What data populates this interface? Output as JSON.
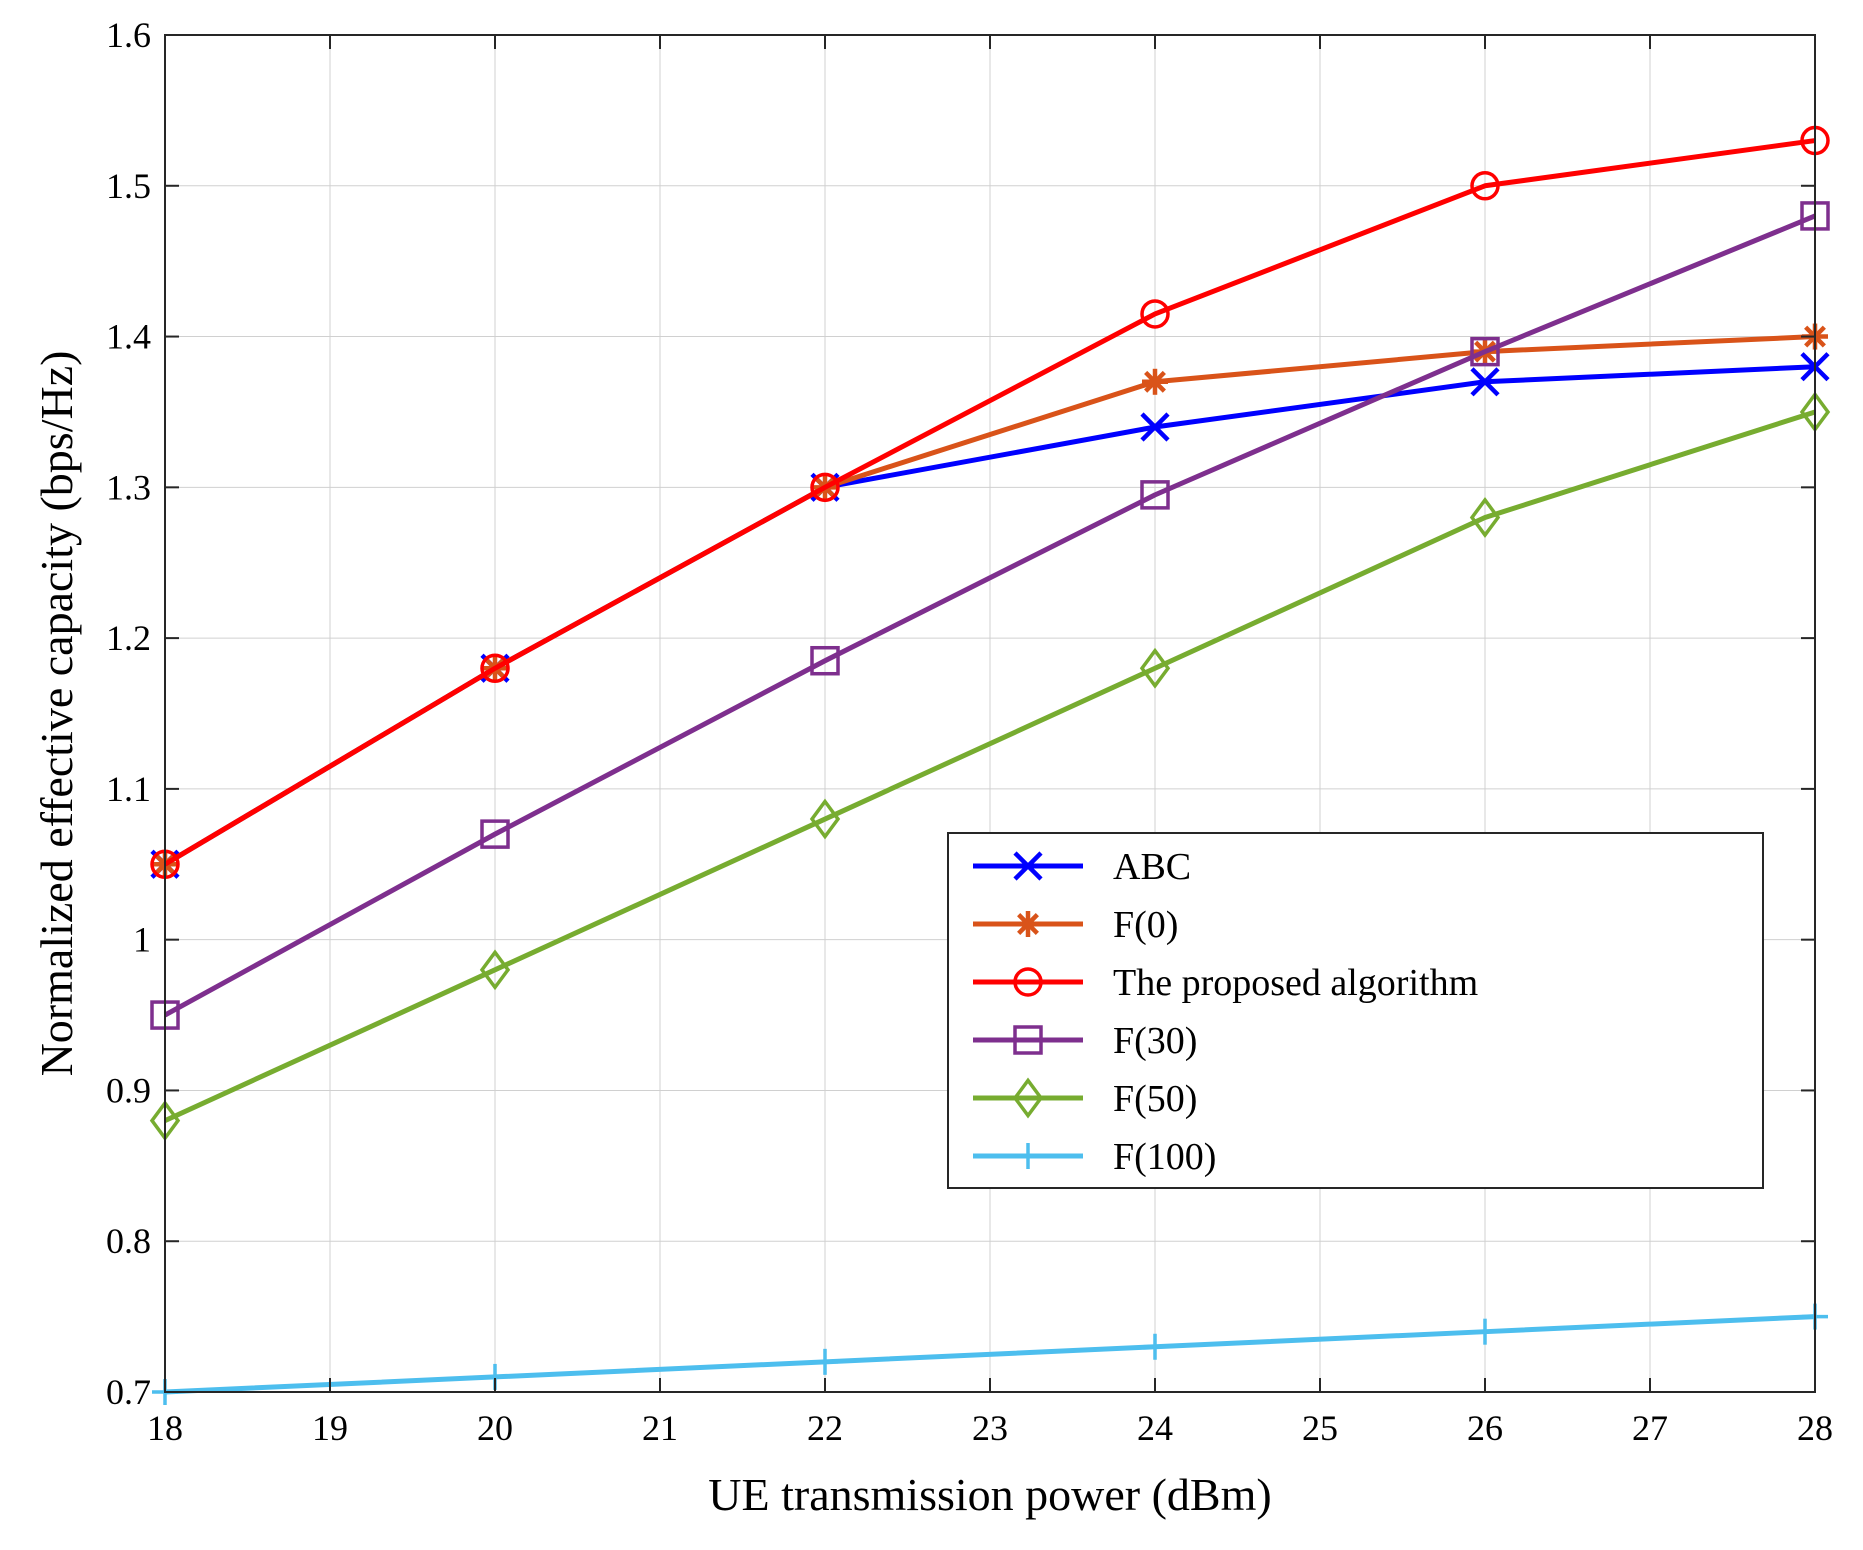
{
  "chart_data": {
    "type": "line",
    "title": "",
    "xlabel": "UE transmission power (dBm)",
    "ylabel": "Normalized effective capacity (bps/Hz)",
    "xlim": [
      18,
      28
    ],
    "ylim": [
      0.7,
      1.6
    ],
    "xticks": [
      18,
      19,
      20,
      21,
      22,
      23,
      24,
      25,
      26,
      27,
      28
    ],
    "yticks": [
      0.7,
      0.8,
      0.9,
      1.0,
      1.1,
      1.2,
      1.3,
      1.4,
      1.5,
      1.6
    ],
    "xtick_labels": [
      "18",
      "19",
      "20",
      "21",
      "22",
      "23",
      "24",
      "25",
      "26",
      "27",
      "28"
    ],
    "ytick_labels": [
      "0.7",
      "0.8",
      "0.9",
      "1",
      "1.1",
      "1.2",
      "1.3",
      "1.4",
      "1.5",
      "1.6"
    ],
    "legend_position": "right",
    "x": [
      18,
      20,
      22,
      24,
      26,
      28
    ],
    "series": [
      {
        "name": "ABC",
        "color": "#0000ff",
        "marker": "x",
        "values": [
          1.05,
          1.18,
          1.3,
          1.34,
          1.37,
          1.38
        ]
      },
      {
        "name": "F(0)",
        "color": "#d95319",
        "marker": "asterisk",
        "values": [
          1.05,
          1.18,
          1.3,
          1.37,
          1.39,
          1.4
        ]
      },
      {
        "name": "The proposed algorithm",
        "color": "#ff0000",
        "marker": "circle",
        "values": [
          1.05,
          1.18,
          1.3,
          1.415,
          1.5,
          1.53
        ]
      },
      {
        "name": "F(30)",
        "color": "#7e2f8e",
        "marker": "square",
        "values": [
          0.95,
          1.07,
          1.185,
          1.295,
          1.39,
          1.48
        ]
      },
      {
        "name": "F(50)",
        "color": "#77ac30",
        "marker": "diamond",
        "values": [
          0.88,
          0.98,
          1.08,
          1.18,
          1.28,
          1.35
        ]
      },
      {
        "name": "F(100)",
        "color": "#4dbeee",
        "marker": "plus",
        "values": [
          0.7,
          0.71,
          0.72,
          0.73,
          0.74,
          0.75
        ]
      }
    ]
  }
}
